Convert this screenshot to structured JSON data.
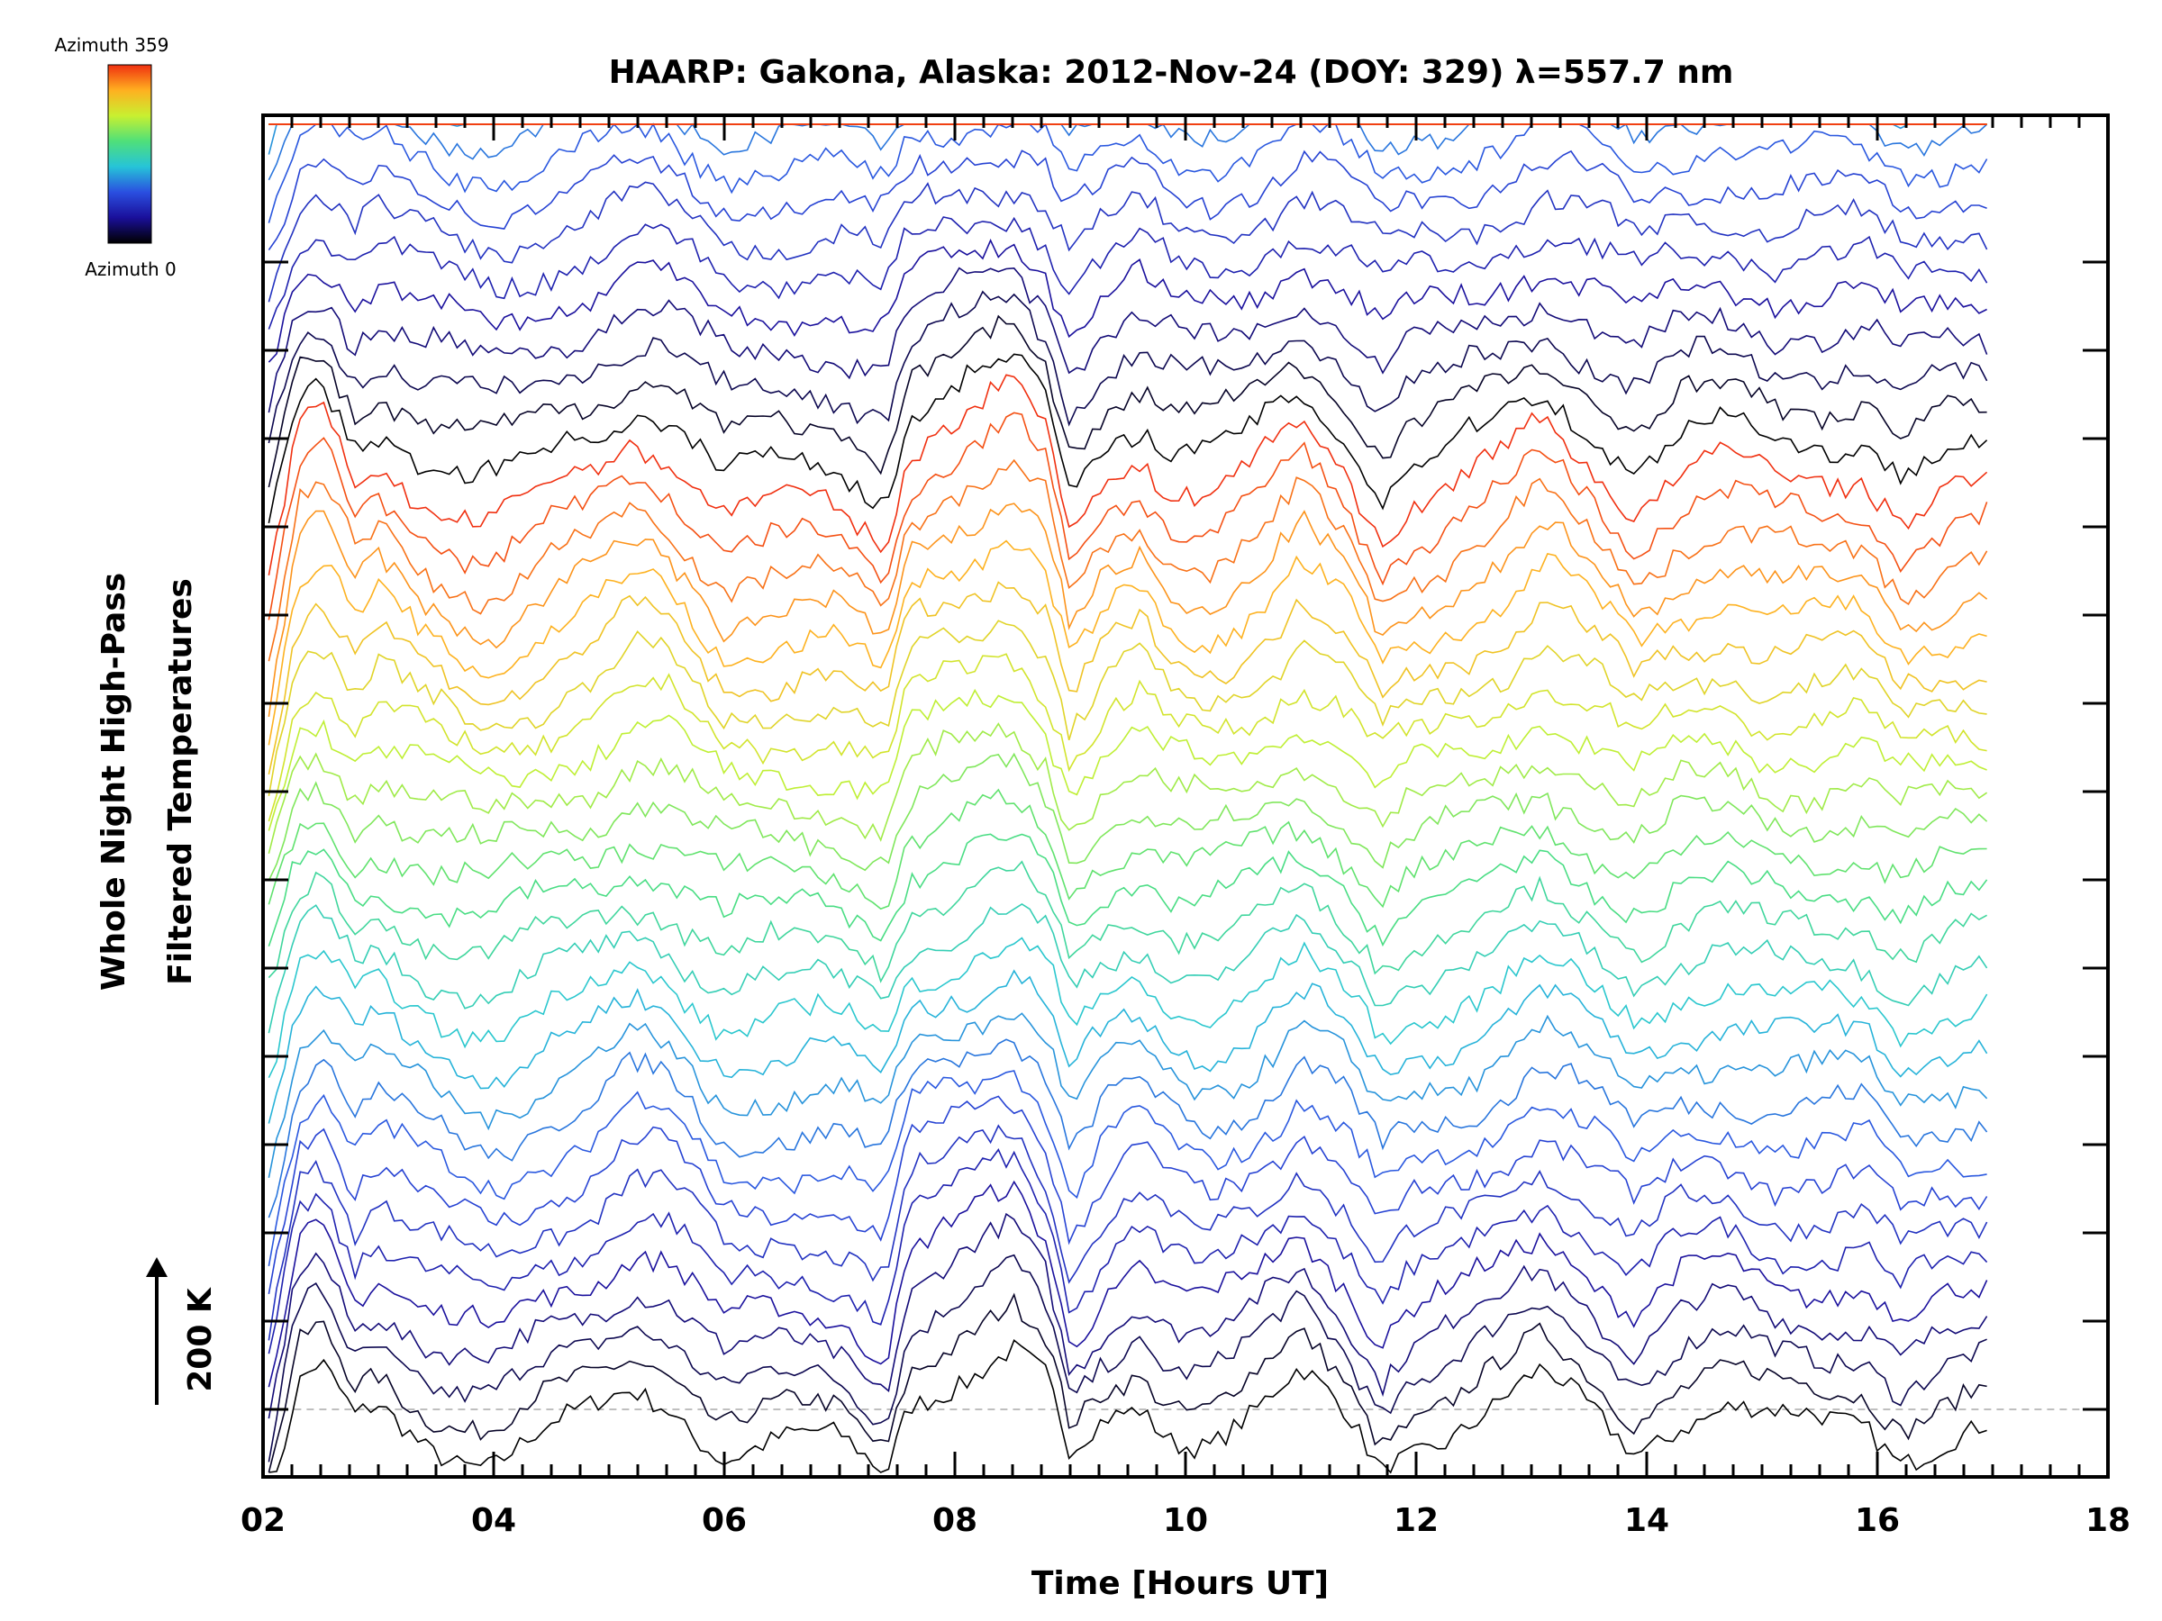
{
  "chart_data": {
    "type": "line",
    "title": "HAARP: Gakona,  Alaska: 2012-Nov-24 (DOY: 329) λ=557.7 nm",
    "xlabel": "Time [Hours UT]",
    "ylabel": [
      "Whole Night High-Pass",
      "Filtered Temperatures"
    ],
    "xlim": [
      2,
      18
    ],
    "x_ticks": [
      "02",
      "04",
      "06",
      "08",
      "10",
      "12",
      "14",
      "16",
      "18"
    ],
    "x_range": [
      2.05,
      16.95
    ],
    "scale_label": "200 K",
    "colorbar": {
      "top_label": "Azimuth 359",
      "bottom_label": "Azimuth 0",
      "colormap": "rainbow",
      "stops": [
        "#000000",
        "#1a0f9a",
        "#2a4fe0",
        "#26c4d8",
        "#4fe07a",
        "#c8f030",
        "#ffb020",
        "#f03010"
      ]
    },
    "n_series": 140,
    "offset_per_series": 10,
    "scale_kelvin_span": 200,
    "baseline_dashed": true,
    "grid": false,
    "legend": "none",
    "shared_wave_profile": {
      "x": [
        2.05,
        2.3,
        2.5,
        2.8,
        3.0,
        3.4,
        3.7,
        4.0,
        4.4,
        4.8,
        5.2,
        5.5,
        5.8,
        6.0,
        6.5,
        7.0,
        7.4,
        7.6,
        7.9,
        8.2,
        8.5,
        8.8,
        9.0,
        9.3,
        9.6,
        9.9,
        10.2,
        10.6,
        11.0,
        11.4,
        11.7,
        11.9,
        12.3,
        12.7,
        13.1,
        13.5,
        13.9,
        14.3,
        14.7,
        15.1,
        15.5,
        15.9,
        16.2,
        16.6,
        16.95
      ],
      "y": [
        -30,
        5,
        10,
        -5,
        0,
        -8,
        -12,
        -14,
        -8,
        -3,
        5,
        3,
        -6,
        -12,
        -10,
        -10,
        -18,
        4,
        8,
        12,
        16,
        6,
        -16,
        -4,
        2,
        -6,
        -8,
        -2,
        8,
        -2,
        -16,
        -10,
        -6,
        0,
        8,
        0,
        -10,
        -2,
        0,
        -4,
        -4,
        -3,
        -12,
        -8,
        -6
      ]
    }
  }
}
